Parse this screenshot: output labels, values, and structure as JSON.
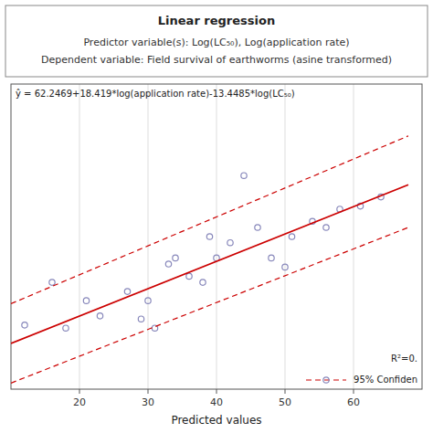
{
  "chart_data": {
    "type": "scatter",
    "title": "Linear regression",
    "subtitle": [
      "Predictor variable(s): Log(LC₅₀), Log(application rate)",
      "Dependent variable: Field survival of earthworms (asine transformed)"
    ],
    "x_label": "Predicted values",
    "xlim": [
      10,
      70
    ],
    "ylim": [
      -15,
      85
    ],
    "xticks": [
      20,
      30,
      40,
      50,
      60
    ],
    "yticks": [],
    "tick_labels": "x",
    "grid": true,
    "legend": "lower right",
    "annotations": [
      "ŷ = 62.2469+18.419*log(application rate)-13.4485*log(LC₅₀)",
      "R²=0."
    ],
    "series": [
      {
        "type": "scatter",
        "color": "#8888bb",
        "marker": "circle",
        "x": [
          12,
          16,
          18,
          21,
          23,
          27,
          29,
          30,
          31,
          33,
          34,
          36,
          38,
          39,
          40,
          42,
          44,
          46,
          48,
          50,
          51,
          54,
          56,
          58,
          61,
          64
        ],
        "values": [
          6,
          20,
          5,
          14,
          9,
          17,
          8,
          14,
          5,
          26,
          28,
          22,
          20,
          35,
          28,
          33,
          55,
          38,
          28,
          25,
          35,
          40,
          38,
          44,
          45,
          48
        ]
      },
      {
        "type": "line",
        "color": "#cc0000",
        "line_style": "solid",
        "x": [
          10,
          68
        ],
        "values": [
          0,
          52
        ]
      },
      {
        "name": "95% Confiden",
        "type": "line",
        "color": "#cc0000",
        "line_style": "dashed",
        "x": [
          10,
          68
        ],
        "values": [
          13,
          68
        ]
      },
      {
        "type": "line",
        "color": "#cc0000",
        "line_style": "dashed",
        "x": [
          10,
          68
        ],
        "values": [
          -13,
          38
        ]
      }
    ]
  }
}
